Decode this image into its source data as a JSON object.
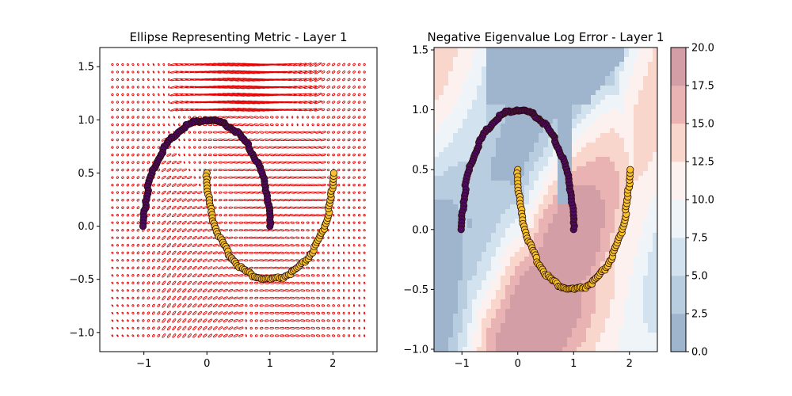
{
  "chart_data": [
    {
      "type": "scatter",
      "title": "Ellipse Representing Metric - Layer 1",
      "xlabel": "",
      "ylabel": "",
      "xlim": [
        -1.7,
        2.7
      ],
      "ylim": [
        -1.18,
        1.68
      ],
      "x_ticks": [
        "−1",
        "0",
        "1",
        "2"
      ],
      "y_ticks": [
        "−1.0",
        "−0.5",
        "0.0",
        "0.5",
        "1.0",
        "1.5"
      ],
      "x_tick_values": [
        -1,
        0,
        1,
        2
      ],
      "y_tick_values": [
        -1.0,
        -0.5,
        0.0,
        0.5,
        1.0,
        1.5
      ],
      "glyph_field": {
        "x_range": [
          -1.5,
          2.5
        ],
        "y_range": [
          -1.03,
          1.52
        ],
        "color": "#e00000",
        "glyph": "ellipse"
      },
      "series": [
        {
          "color": "#4b0a5e",
          "moon": "upper",
          "center": [
            0,
            0
          ],
          "radius": 1,
          "angle_range_deg": [
            0,
            180
          ]
        },
        {
          "color": "#f5c22b",
          "moon": "lower",
          "center": [
            1,
            0.5
          ],
          "radius": 1,
          "angle_range_deg": [
            180,
            360
          ]
        }
      ]
    },
    {
      "type": "heatmap",
      "title": "Negative Eigenvalue Log Error - Layer 1",
      "xlabel": "",
      "ylabel": "",
      "xlim": [
        -1.5,
        2.5
      ],
      "ylim": [
        -1.02,
        1.52
      ],
      "x_ticks": [
        "−1",
        "0",
        "1",
        "2"
      ],
      "y_ticks": [
        "−1.0",
        "−0.5",
        "0.0",
        "0.5",
        "1.0",
        "1.5"
      ],
      "x_tick_values": [
        -1,
        0,
        1,
        2
      ],
      "y_tick_values": [
        -1.0,
        -0.5,
        0.0,
        0.5,
        1.0,
        1.5
      ],
      "colorbar": {
        "range": [
          0,
          20
        ],
        "ticks": [
          "0.0",
          "2.5",
          "5.0",
          "7.5",
          "10.0",
          "12.5",
          "15.0",
          "17.5",
          "20.0"
        ],
        "levels": [
          0,
          2.5,
          5,
          7.5,
          10,
          12.5,
          15,
          17.5,
          20
        ],
        "colors": [
          "#9fb4cd",
          "#b8cde0",
          "#d2e3ef",
          "#eef4f8",
          "#fcf1ee",
          "#f8d6cc",
          "#e9b3b4",
          "#d49ea7"
        ]
      }
    }
  ]
}
